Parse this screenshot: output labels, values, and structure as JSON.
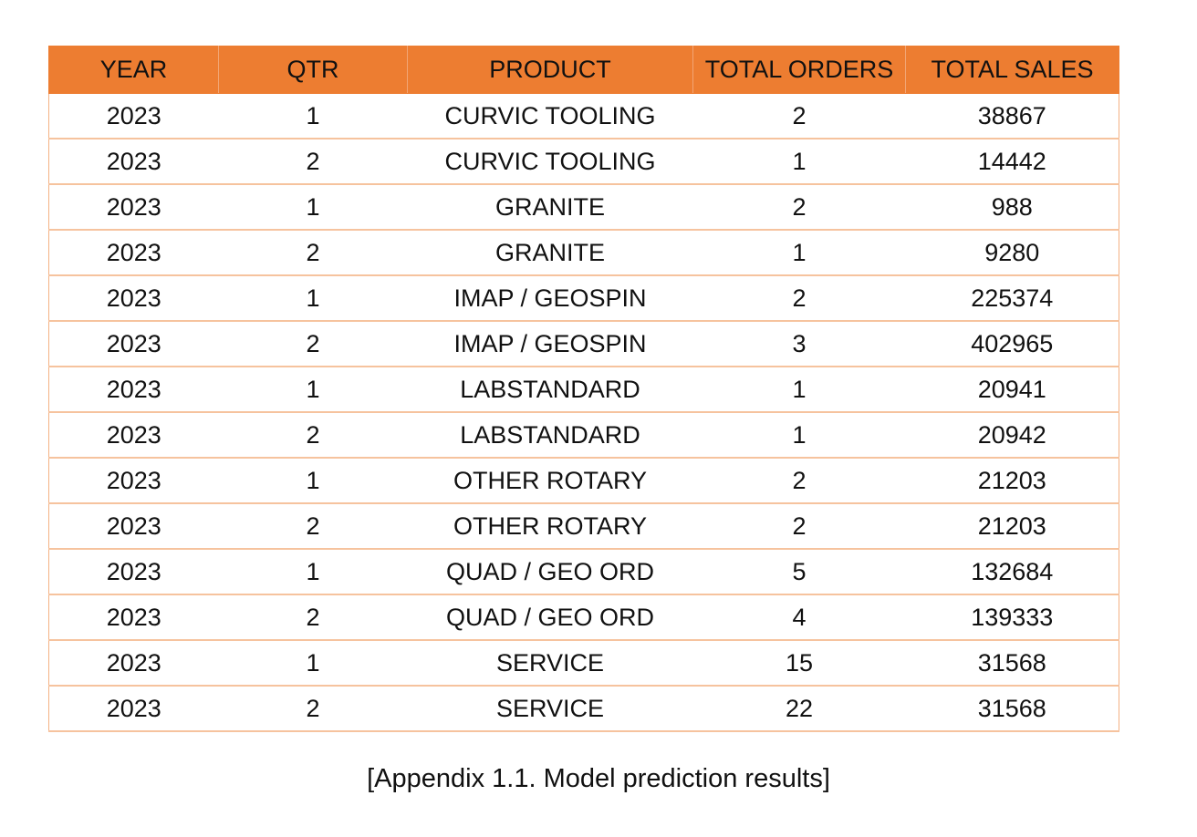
{
  "table": {
    "headers": [
      "YEAR",
      "QTR",
      "PRODUCT",
      "TOTAL ORDERS",
      "TOTAL SALES"
    ],
    "rows": [
      [
        "2023",
        "1",
        "CURVIC TOOLING",
        "2",
        "38867"
      ],
      [
        "2023",
        "2",
        "CURVIC TOOLING",
        "1",
        "14442"
      ],
      [
        "2023",
        "1",
        "GRANITE",
        "2",
        "988"
      ],
      [
        "2023",
        "2",
        "GRANITE",
        "1",
        "9280"
      ],
      [
        "2023",
        "1",
        "IMAP / GEOSPIN",
        "2",
        "225374"
      ],
      [
        "2023",
        "2",
        "IMAP / GEOSPIN",
        "3",
        "402965"
      ],
      [
        "2023",
        "1",
        "LABSTANDARD",
        "1",
        "20941"
      ],
      [
        "2023",
        "2",
        "LABSTANDARD",
        "1",
        "20942"
      ],
      [
        "2023",
        "1",
        "OTHER ROTARY",
        "2",
        "21203"
      ],
      [
        "2023",
        "2",
        "OTHER ROTARY",
        "2",
        "21203"
      ],
      [
        "2023",
        "1",
        "QUAD / GEO ORD",
        "5",
        "132684"
      ],
      [
        "2023",
        "2",
        "QUAD / GEO ORD",
        "4",
        "139333"
      ],
      [
        "2023",
        "1",
        "SERVICE",
        "15",
        "31568"
      ],
      [
        "2023",
        "2",
        "SERVICE",
        "22",
        "31568"
      ]
    ]
  },
  "caption": "[Appendix 1.1. Model prediction results]",
  "colors": {
    "header_background": "#ED7D31",
    "row_border": "#F6C39E"
  }
}
